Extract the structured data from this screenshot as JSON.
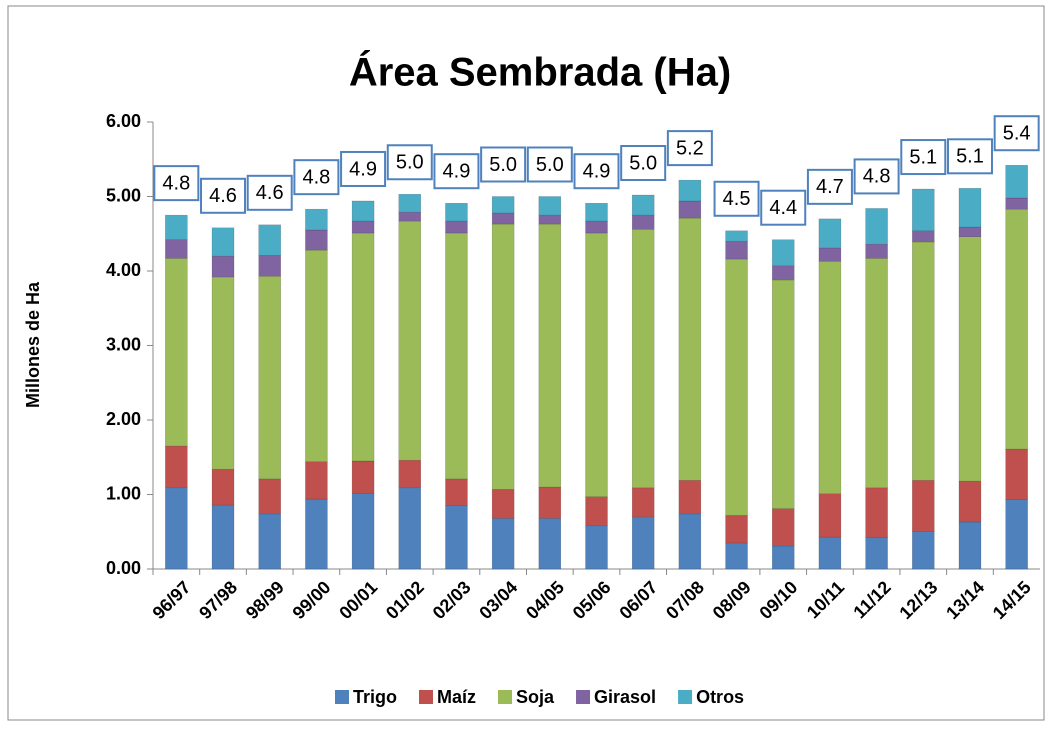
{
  "chart_data": {
    "type": "stacked_bar",
    "title": "Área Sembrada (Ha)",
    "y_label": "Millones de Ha",
    "categories": [
      "96/97",
      "97/98",
      "98/99",
      "99/00",
      "00/01",
      "01/02",
      "02/03",
      "03/04",
      "04/05",
      "05/06",
      "06/07",
      "07/08",
      "08/09",
      "09/10",
      "10/11",
      "11/12",
      "12/13",
      "13/14",
      "14/15"
    ],
    "series": [
      {
        "name": "Trigo",
        "color": "#4f81bd",
        "values": [
          1.09,
          0.86,
          0.74,
          0.94,
          1.01,
          1.09,
          0.85,
          0.68,
          0.68,
          0.58,
          0.7,
          0.74,
          0.35,
          0.31,
          0.43,
          0.42,
          0.5,
          0.63,
          0.93
        ]
      },
      {
        "name": "Maíz",
        "color": "#c0504d",
        "values": [
          0.56,
          0.48,
          0.47,
          0.5,
          0.44,
          0.37,
          0.36,
          0.39,
          0.42,
          0.39,
          0.39,
          0.45,
          0.37,
          0.5,
          0.58,
          0.67,
          0.69,
          0.55,
          0.68
        ]
      },
      {
        "name": "Soja",
        "color": "#9bbb59",
        "values": [
          2.52,
          2.58,
          2.72,
          2.84,
          3.06,
          3.21,
          3.3,
          3.56,
          3.53,
          3.54,
          3.47,
          3.52,
          3.44,
          3.07,
          3.12,
          3.08,
          3.2,
          3.28,
          3.22
        ]
      },
      {
        "name": "Girasol",
        "color": "#8064a2",
        "values": [
          0.25,
          0.28,
          0.28,
          0.27,
          0.16,
          0.12,
          0.16,
          0.15,
          0.12,
          0.16,
          0.19,
          0.23,
          0.24,
          0.19,
          0.18,
          0.19,
          0.15,
          0.13,
          0.15
        ]
      },
      {
        "name": "Otros",
        "color": "#4bacc6",
        "values": [
          0.33,
          0.38,
          0.41,
          0.28,
          0.27,
          0.24,
          0.24,
          0.22,
          0.25,
          0.24,
          0.27,
          0.28,
          0.14,
          0.35,
          0.39,
          0.48,
          0.56,
          0.52,
          0.44
        ]
      }
    ],
    "totals": {
      "values": [
        4.75,
        4.58,
        4.62,
        4.83,
        4.94,
        5.03,
        4.91,
        5.0,
        5.0,
        4.91,
        5.02,
        5.22,
        4.54,
        4.42,
        4.7,
        4.84,
        5.1,
        5.11,
        5.42
      ],
      "value_labels": [
        "4.8",
        "4.6",
        "4.6",
        "4.8",
        "4.9",
        "5.0",
        "4.9",
        "5.0",
        "5.0",
        "4.9",
        "5.0",
        "5.2",
        "4.5",
        "4.4",
        "4.7",
        "4.8",
        "5.1",
        "5.1",
        "5.4"
      ]
    },
    "ylim": [
      0,
      6
    ],
    "yticks": [
      {
        "value": 0,
        "label": "0.00"
      },
      {
        "value": 1,
        "label": "1.00"
      },
      {
        "value": 2,
        "label": "2.00"
      },
      {
        "value": 3,
        "label": "3.00"
      },
      {
        "value": 4,
        "label": "4.00"
      },
      {
        "value": 5,
        "label": "5.00"
      },
      {
        "value": 6,
        "label": "6.00"
      }
    ],
    "grid": false,
    "legend": "bottom"
  }
}
